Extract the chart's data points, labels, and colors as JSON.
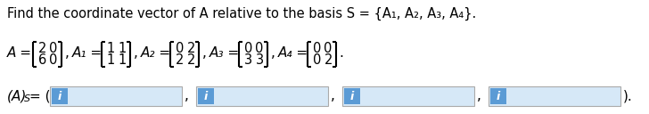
{
  "title": "Find the coordinate vector of A relative to the basis S = {A₁, A₂, A₃, A₄}.",
  "title_fontsize": 10.5,
  "background_color": "#ffffff",
  "text_color": "#000000",
  "input_box_color": "#5b9bd5",
  "input_box_bg": "#d6e8f7",
  "matrix_A": [
    [
      2,
      0
    ],
    [
      6,
      0
    ]
  ],
  "matrix_A1": [
    [
      1,
      1
    ],
    [
      1,
      1
    ]
  ],
  "matrix_A2": [
    [
      0,
      2
    ],
    [
      2,
      2
    ]
  ],
  "matrix_A3": [
    [
      0,
      0
    ],
    [
      3,
      3
    ]
  ],
  "matrix_A4": [
    [
      0,
      0
    ],
    [
      0,
      2
    ]
  ]
}
